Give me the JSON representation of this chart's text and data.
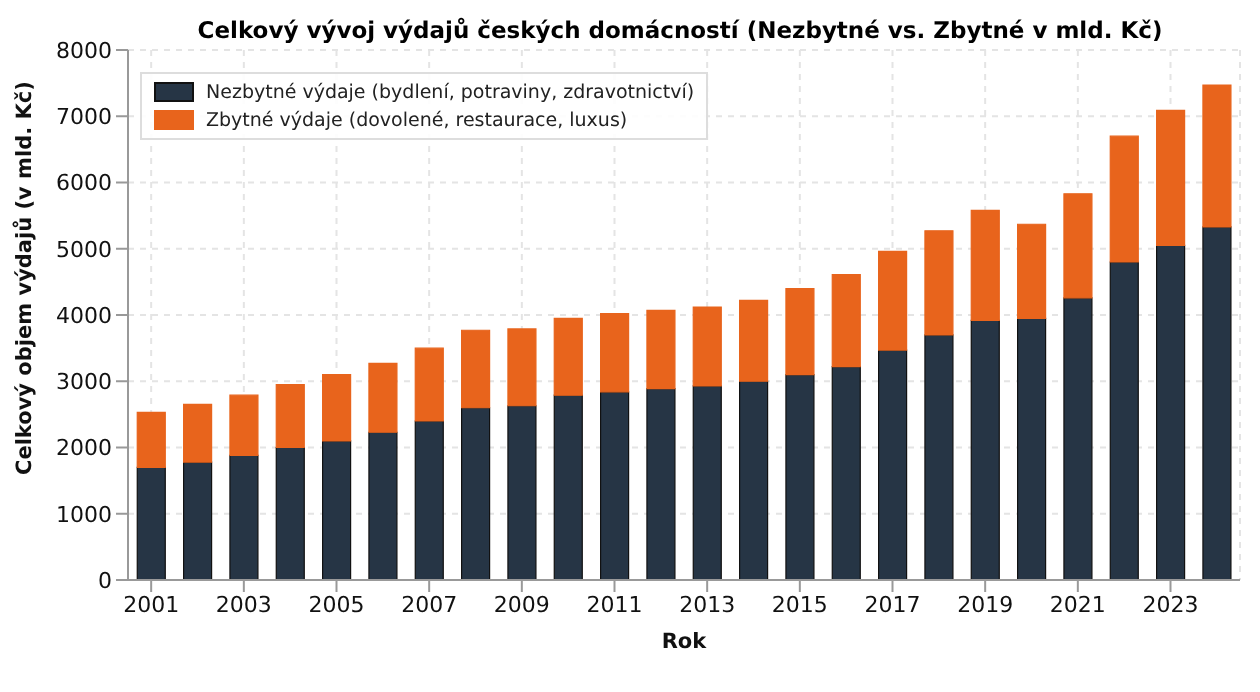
{
  "chart_data": {
    "type": "bar",
    "title": "Celkový vývoj výdajů českých domácností (Nezbytné vs. Zbytné v mld. Kč)",
    "xlabel": "Rok",
    "ylabel": "Celkový objem výdajů (v mld. Kč)",
    "categories": [
      "2001",
      null,
      "2003",
      null,
      "2005",
      null,
      "2007",
      null,
      "2009",
      null,
      "2011",
      null,
      "2013",
      null,
      "2015",
      null,
      "2017",
      null,
      "2019",
      null,
      "2021",
      null,
      "2023",
      null
    ],
    "stacked": true,
    "series": [
      {
        "name": "Nezbytné výdaje (bydlení, potraviny, zdravotnictví)",
        "color": "#263545",
        "values": [
          1700,
          1780,
          1880,
          2000,
          2100,
          2230,
          2400,
          2600,
          2630,
          2790,
          2840,
          2890,
          2930,
          3000,
          3100,
          3220,
          3470,
          3700,
          3920,
          3950,
          4260,
          4800,
          5050,
          5330
        ]
      },
      {
        "name": "Zbytné výdaje (dovolené, restaurace, luxus)",
        "color": "#e8641c",
        "values": [
          830,
          870,
          910,
          950,
          1000,
          1040,
          1100,
          1170,
          1160,
          1160,
          1180,
          1180,
          1190,
          1220,
          1300,
          1390,
          1490,
          1570,
          1660,
          1420,
          1570,
          1900,
          2040,
          2140
        ]
      }
    ],
    "ylim": [
      0,
      8000
    ],
    "yticks": [
      0,
      1000,
      2000,
      3000,
      4000,
      5000,
      6000,
      7000,
      8000
    ],
    "grid": true,
    "legend": "top left"
  }
}
